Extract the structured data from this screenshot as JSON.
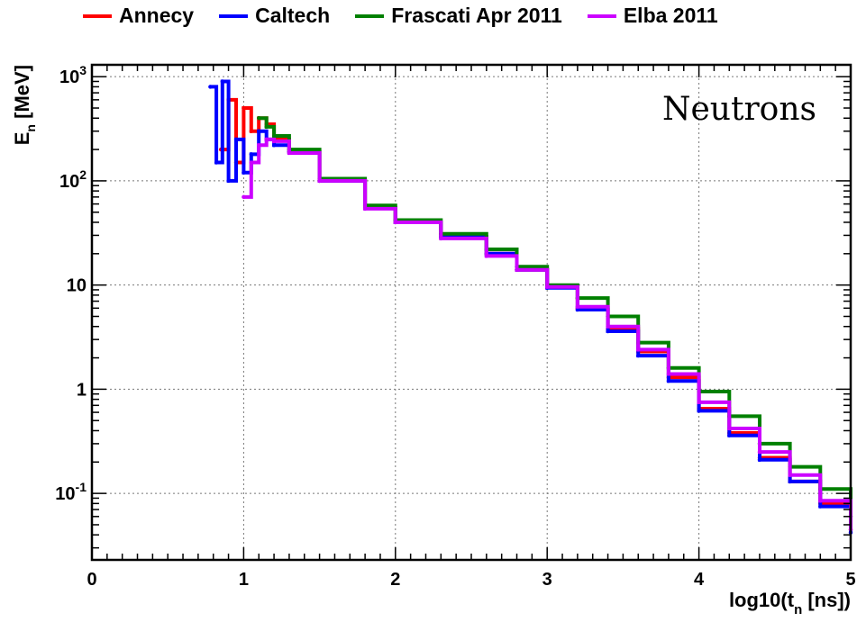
{
  "legend": {
    "entries": [
      {
        "name": "Annecy",
        "color": "#ff0000"
      },
      {
        "name": "Caltech",
        "color": "#0000ff"
      },
      {
        "name": "Frascati Apr 2011",
        "color": "#008000"
      },
      {
        "name": "Elba 2011",
        "color": "#cc00ff"
      }
    ]
  },
  "chart_data": {
    "type": "line",
    "title": "",
    "xlabel": "log10(t_n [ns])",
    "ylabel": "E_n [MeV]",
    "annotation": "Neutrons",
    "xlim": [
      0,
      5
    ],
    "ylim": [
      0.023,
      1300
    ],
    "yscale": "log",
    "grid": true,
    "legend_position": "top",
    "x_ticks": [
      "0",
      "1",
      "2",
      "3",
      "4",
      "5"
    ],
    "y_ticks": [
      {
        "value": 1000,
        "base": "10",
        "exp": "3"
      },
      {
        "value": 100,
        "base": "10",
        "exp": "2"
      },
      {
        "value": 10,
        "base": "10",
        "exp": ""
      },
      {
        "value": 1,
        "base": "1",
        "exp": ""
      },
      {
        "value": 0.1,
        "base": "10",
        "exp": "-1"
      }
    ],
    "series": [
      {
        "name": "Annecy",
        "color": "#ff0000",
        "x": [
          0.85,
          0.9,
          0.95,
          1.0,
          1.05,
          1.1,
          1.15,
          1.2,
          1.3,
          1.5,
          1.8,
          2.0,
          2.3,
          2.6,
          2.8,
          3.0,
          3.2,
          3.4,
          3.6,
          3.8,
          4.0,
          4.2,
          4.4,
          4.6,
          4.8,
          5.0
        ],
        "y": [
          200,
          600,
          150,
          500,
          300,
          400,
          350,
          250,
          190,
          100,
          55,
          40,
          29,
          20,
          14,
          9.5,
          6.0,
          3.8,
          2.3,
          1.3,
          0.65,
          0.38,
          0.22,
          0.13,
          0.08,
          0.045
        ]
      },
      {
        "name": "Caltech",
        "color": "#0000ff",
        "x": [
          0.78,
          0.82,
          0.86,
          0.9,
          0.95,
          1.0,
          1.05,
          1.1,
          1.15,
          1.2,
          1.3,
          1.5,
          1.8,
          2.0,
          2.3,
          2.6,
          2.8,
          3.0,
          3.2,
          3.4,
          3.6,
          3.8,
          4.0,
          4.2,
          4.4,
          4.6,
          4.8,
          5.0
        ],
        "y": [
          800,
          150,
          900,
          100,
          250,
          120,
          180,
          300,
          250,
          220,
          190,
          100,
          55,
          40,
          29,
          20,
          14,
          9.4,
          5.8,
          3.6,
          2.1,
          1.2,
          0.62,
          0.36,
          0.21,
          0.13,
          0.075,
          0.042
        ]
      },
      {
        "name": "Frascati Apr 2011",
        "color": "#008000",
        "x": [
          1.1,
          1.15,
          1.2,
          1.3,
          1.5,
          1.8,
          2.0,
          2.3,
          2.6,
          2.8,
          3.0,
          3.2,
          3.4,
          3.6,
          3.8,
          4.0,
          4.2,
          4.4,
          4.6,
          4.8,
          5.0
        ],
        "y": [
          400,
          330,
          270,
          200,
          105,
          58,
          42,
          31,
          22,
          15,
          10,
          7.5,
          5.0,
          2.8,
          1.6,
          0.95,
          0.55,
          0.3,
          0.18,
          0.11,
          0.06
        ]
      },
      {
        "name": "Elba 2011",
        "color": "#cc00ff",
        "x": [
          1.0,
          1.05,
          1.1,
          1.15,
          1.2,
          1.3,
          1.5,
          1.8,
          2.0,
          2.3,
          2.6,
          2.8,
          3.0,
          3.2,
          3.4,
          3.6,
          3.8,
          4.0,
          4.2,
          4.4,
          4.6,
          4.8,
          5.0
        ],
        "y": [
          70,
          150,
          220,
          250,
          240,
          185,
          100,
          54,
          40,
          28,
          19,
          14,
          9.6,
          6.2,
          4.0,
          2.4,
          1.4,
          0.75,
          0.42,
          0.25,
          0.15,
          0.085,
          0.045
        ]
      }
    ]
  }
}
